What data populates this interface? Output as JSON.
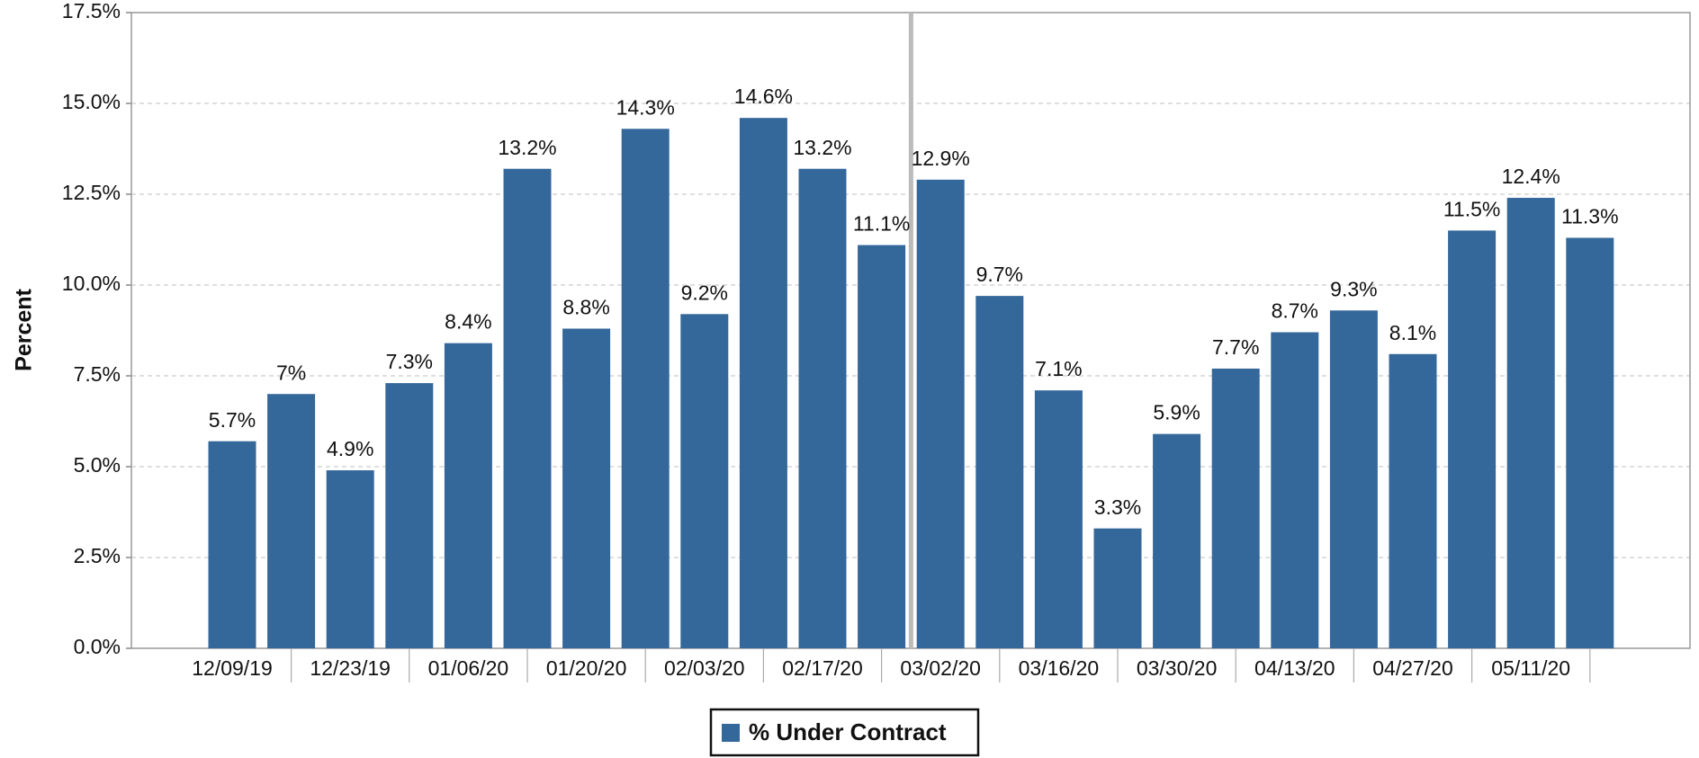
{
  "chart_data": {
    "type": "bar",
    "y_label": "Percent",
    "categories": [
      "12/09/19",
      null,
      "12/23/19",
      null,
      "01/06/20",
      null,
      "01/20/20",
      null,
      "02/03/20",
      null,
      "02/17/20",
      null,
      "03/02/20",
      null,
      "03/16/20",
      null,
      "03/30/20",
      null,
      "04/13/20",
      null,
      "04/27/20",
      null,
      "05/11/20",
      null
    ],
    "series": [
      {
        "name": "% Under Contract",
        "color": "#34679a",
        "values": [
          5.7,
          7,
          4.9,
          7.3,
          8.4,
          13.2,
          8.8,
          14.3,
          9.2,
          14.6,
          13.2,
          11.1,
          12.9,
          9.7,
          7.1,
          3.3,
          5.9,
          7.7,
          8.7,
          9.3,
          8.1,
          11.5,
          12.4,
          11.3
        ],
        "value_labels": [
          "5.7%",
          "7%",
          "4.9%",
          "7.3%",
          "8.4%",
          "13.2%",
          "8.8%",
          "14.3%",
          "9.2%",
          "14.6%",
          "13.2%",
          "11.1%",
          "12.9%",
          "9.7%",
          "7.1%",
          "3.3%",
          "5.9%",
          "7.7%",
          "8.7%",
          "9.3%",
          "8.1%",
          "11.5%",
          "12.4%",
          "11.3%"
        ]
      }
    ],
    "ylim": [
      0,
      17.5
    ],
    "yticks": [
      {
        "value": 0,
        "label": "0.0%"
      },
      {
        "value": 2.5,
        "label": "2.5%"
      },
      {
        "value": 5,
        "label": "5.0%"
      },
      {
        "value": 7.5,
        "label": "7.5%"
      },
      {
        "value": 10,
        "label": "10.0%"
      },
      {
        "value": 12.5,
        "label": "12.5%"
      },
      {
        "value": 15,
        "label": "15.0%"
      },
      {
        "value": 17.5,
        "label": "17.5%"
      }
    ],
    "grid": true,
    "legend": "bottom"
  }
}
